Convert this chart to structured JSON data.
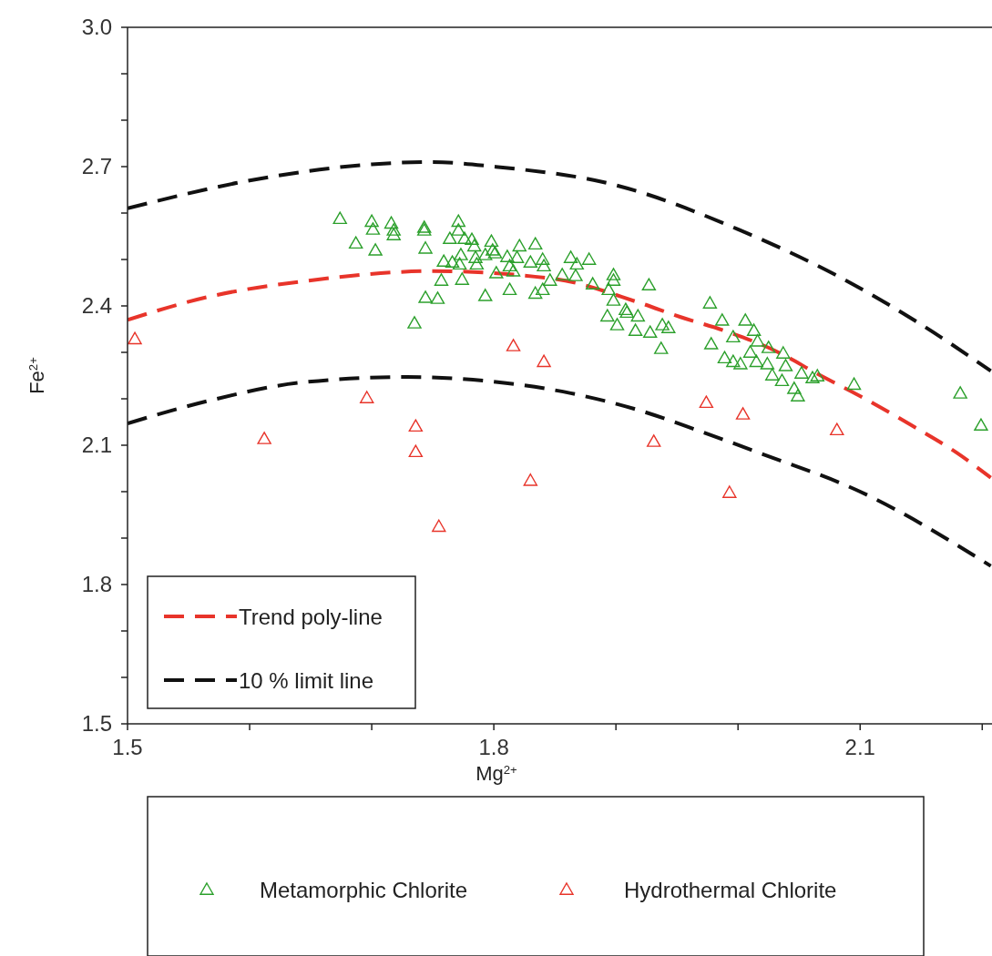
{
  "chart_data": {
    "type": "scatter",
    "xlabel": "Mg$^{2+}$",
    "ylabel": "Fe$^{2+}$",
    "xlim": [
      1.5,
      2.208
    ],
    "ylim": [
      1.5,
      3.0
    ],
    "xticks": [
      1.5,
      {
        "value": 1.6,
        "label": null
      },
      {
        "value": 1.7,
        "label": null
      },
      1.8,
      {
        "value": 1.9,
        "label": null
      },
      {
        "value": 2.0,
        "label": null
      },
      2.1,
      {
        "value": 2.2,
        "label": null
      }
    ],
    "yticks": [
      1.5,
      {
        "value": 1.6,
        "label": null
      },
      {
        "value": 1.7,
        "label": null
      },
      1.8,
      {
        "value": 1.9,
        "label": null
      },
      {
        "value": 2.0,
        "label": null
      },
      2.1,
      {
        "value": 2.2,
        "label": null
      },
      {
        "value": 2.3,
        "label": null
      },
      2.4,
      {
        "value": 2.5,
        "label": null
      },
      {
        "value": 2.6,
        "label": null
      },
      2.7,
      {
        "value": 2.8,
        "label": null
      },
      {
        "value": 2.9,
        "label": null
      },
      {
        "value": 3.0,
        "label": "3.0"
      }
    ],
    "grid": false,
    "legend": "bottom left",
    "marker": "triangle",
    "series": [
      {
        "name": "Trend poly-line",
        "type": "line",
        "marker": "none",
        "line_style": "dashed",
        "color": "#e8342a",
        "x": [
          1.5,
          1.567,
          1.65,
          1.75,
          1.85,
          1.918,
          1.953,
          1.993,
          2.03,
          2.067,
          2.104,
          2.142,
          2.179,
          2.207
        ],
        "values": [
          2.37,
          2.42,
          2.455,
          2.475,
          2.458,
          2.408,
          2.376,
          2.343,
          2.304,
          2.251,
          2.2,
          2.143,
          2.084,
          2.03
        ]
      },
      {
        "name": "10 % limit line",
        "type": "line",
        "marker": "none",
        "line_style": "dashed",
        "color": "#111111",
        "x": [
          1.5,
          1.6,
          1.7,
          1.75,
          1.8,
          1.9,
          2.0,
          2.084,
          2.15,
          2.207
        ],
        "values": [
          2.61,
          2.67,
          2.705,
          2.71,
          2.7,
          2.66,
          2.565,
          2.461,
          2.36,
          2.26
        ]
      },
      {
        "type": "line",
        "marker": "none",
        "line_style": "dashed",
        "color": "#111111",
        "x": [
          1.5,
          1.567,
          1.642,
          1.729,
          1.791,
          1.863,
          1.918,
          1.968,
          2.017,
          2.1,
          2.207
        ],
        "values": [
          2.147,
          2.196,
          2.235,
          2.247,
          2.239,
          2.212,
          2.176,
          2.131,
          2.084,
          2.0,
          1.84
        ]
      },
      {
        "name": "Metamorphic Chlorite",
        "color": "#2ca02c",
        "x": [
          1.674,
          1.7,
          1.701,
          1.687,
          1.703,
          1.716,
          1.718,
          1.718,
          1.743,
          1.743,
          1.744,
          1.771,
          1.771,
          1.764,
          1.776,
          1.782,
          1.784,
          1.798,
          1.799,
          1.821,
          1.834,
          1.759,
          1.766,
          1.773,
          1.772,
          1.785,
          1.786,
          1.793,
          1.801,
          1.811,
          1.813,
          1.819,
          1.816,
          1.83,
          1.84,
          1.841,
          1.863,
          1.868,
          1.878,
          1.867,
          1.881,
          1.856,
          1.846,
          1.84,
          1.834,
          1.802,
          1.757,
          1.774,
          1.744,
          1.754,
          1.793,
          1.813,
          1.735,
          1.898,
          1.898,
          1.894,
          1.927,
          1.898,
          1.893,
          1.901,
          1.908,
          1.909,
          1.918,
          1.916,
          1.928,
          1.937,
          1.938,
          1.943,
          1.977,
          1.987,
          1.978,
          2.006,
          2.013,
          1.996,
          1.989,
          1.996,
          2.002,
          2.01,
          2.016,
          2.015,
          2.024,
          2.025,
          2.037,
          2.039,
          2.028,
          2.036,
          2.046,
          2.049,
          2.052,
          2.061,
          2.065,
          2.095,
          2.182,
          2.199
        ],
        "values": [
          2.588,
          2.582,
          2.565,
          2.535,
          2.52,
          2.578,
          2.563,
          2.553,
          2.569,
          2.563,
          2.524,
          2.582,
          2.563,
          2.545,
          2.545,
          2.543,
          2.529,
          2.539,
          2.52,
          2.529,
          2.533,
          2.496,
          2.494,
          2.51,
          2.49,
          2.504,
          2.49,
          2.51,
          2.514,
          2.506,
          2.486,
          2.504,
          2.475,
          2.494,
          2.5,
          2.486,
          2.504,
          2.49,
          2.5,
          2.465,
          2.447,
          2.467,
          2.455,
          2.435,
          2.427,
          2.471,
          2.455,
          2.457,
          2.418,
          2.416,
          2.422,
          2.435,
          2.363,
          2.467,
          2.455,
          2.435,
          2.445,
          2.412,
          2.378,
          2.359,
          2.392,
          2.386,
          2.378,
          2.347,
          2.343,
          2.308,
          2.359,
          2.353,
          2.406,
          2.369,
          2.318,
          2.369,
          2.347,
          2.333,
          2.288,
          2.28,
          2.275,
          2.3,
          2.324,
          2.28,
          2.275,
          2.31,
          2.298,
          2.271,
          2.251,
          2.239,
          2.222,
          2.206,
          2.255,
          2.245,
          2.249,
          2.231,
          2.212,
          2.143
        ]
      },
      {
        "name": "Hydrothermal Chlorite",
        "color": "#e8342a",
        "x": [
          1.506,
          1.612,
          1.696,
          1.736,
          1.736,
          1.755,
          1.816,
          1.83,
          1.841,
          1.931,
          1.974,
          1.993,
          2.004,
          2.081
        ],
        "values": [
          2.329,
          2.114,
          2.202,
          2.141,
          2.086,
          1.925,
          2.314,
          2.024,
          2.28,
          2.108,
          2.192,
          1.998,
          2.167,
          2.133
        ]
      }
    ]
  }
}
